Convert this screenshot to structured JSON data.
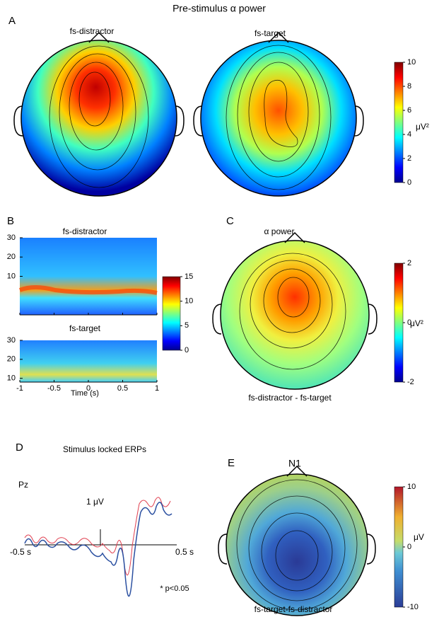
{
  "title": "Pre-stimulus α power",
  "panels": [
    {
      "letter": "A",
      "maps": [
        "fs-distractor",
        "fs-target"
      ],
      "colorbar": {
        "lim": [
          0,
          10
        ],
        "ticks": [
          0,
          2,
          4,
          6,
          8,
          10
        ],
        "unit": "μV²"
      }
    },
    {
      "letter": "B",
      "maps": [
        {
          "title": "fs-distractor",
          "ylim": [
            -10,
            30
          ],
          "yticks": [
            10,
            20,
            30
          ]
        },
        {
          "title": "fs-target",
          "ylim": [
            8,
            30
          ],
          "yticks": [
            10,
            20,
            30
          ]
        }
      ],
      "xlim": [
        -1,
        1
      ],
      "xticks": [
        -1,
        -0.5,
        0,
        0.5,
        1
      ],
      "xlabel": "Time (s)",
      "colorbar": {
        "lim": [
          0,
          15
        ],
        "ticks": [
          0,
          5,
          10,
          15
        ]
      }
    },
    {
      "letter": "C",
      "title": "α power",
      "caption": "fs-distractor - fs-target",
      "colorbar": {
        "lim": [
          -2,
          2
        ],
        "ticks": [
          -2,
          0,
          2
        ],
        "unit": "μV²"
      }
    },
    {
      "letter": "D",
      "title": "Stimulus locked ERPs",
      "channel": "Pz",
      "scale_label": "1 μV",
      "x_start": "-0.5 s",
      "x_end": "0.5 s",
      "note": "* p<0.05"
    },
    {
      "letter": "E",
      "title": "N1",
      "caption": "fs-target-fs-distractor",
      "colorbar": {
        "lim": [
          -10,
          10
        ],
        "ticks": [
          -10,
          0,
          10
        ],
        "unit": "μV"
      }
    }
  ]
}
